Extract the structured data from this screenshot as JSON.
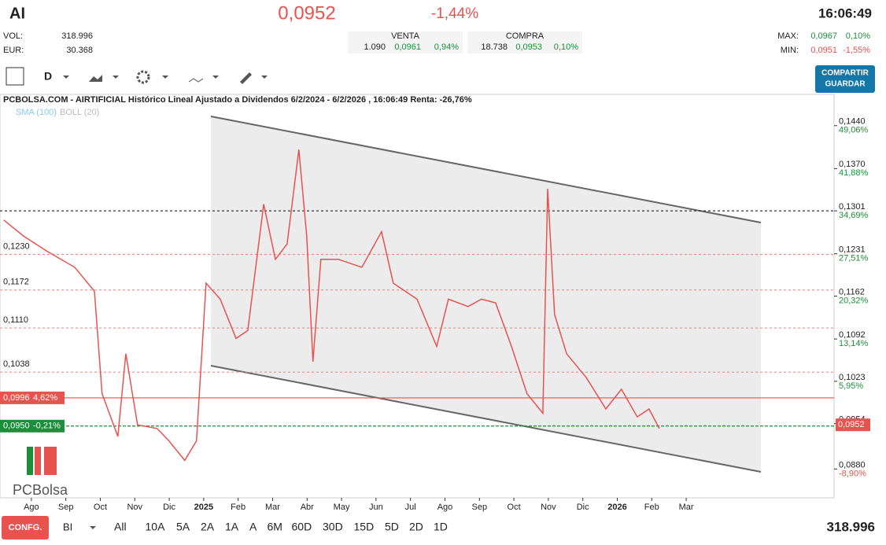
{
  "header": {
    "symbol": "AI",
    "price": "0,0952",
    "change": "-1,44%",
    "time": "16:06:49",
    "vol_label": "VOL:",
    "vol": "318.996",
    "eur_label": "EUR:",
    "eur": "30.368",
    "venta": {
      "title": "VENTA",
      "qty": "1.090",
      "price": "0,0961",
      "pct": "0,94%"
    },
    "compra": {
      "title": "COMPRA",
      "qty": "18.738",
      "price": "0,0953",
      "pct": "0,10%"
    },
    "max": {
      "label": "MAX:",
      "price": "0,0967",
      "pct": "0,10%"
    },
    "min": {
      "label": "MIN:",
      "price": "0,0951",
      "pct": "-1,55%"
    }
  },
  "toolbar": {
    "period": "D",
    "button_line1": "COMPARTIR",
    "button_line2": "GUARDAR"
  },
  "footer": {
    "config": "CONFG.",
    "mode": "BI",
    "ranges": [
      "All",
      "10A",
      "5A",
      "2A",
      "1A",
      "A",
      "6M",
      "60D",
      "30D",
      "15D",
      "5D",
      "2D",
      "1D"
    ],
    "volume": "318.996"
  },
  "logo": "PCBolsa",
  "chart_data": {
    "type": "line",
    "title": "PCBOLSA.COM - AIRTIFICIAL Histórico Lineal Ajustado a Dividendos 6/2/2024 - 6/2/2026 , 16:06:49 Renta: -26,76%",
    "indicators": [
      "SMA (100)",
      "BOLL (20)"
    ],
    "xlim": [
      -0.91,
      23.29
    ],
    "xticks": [
      {
        "value": 0,
        "label": "Ago"
      },
      {
        "value": 1,
        "label": "Sep"
      },
      {
        "value": 2,
        "label": "Oct"
      },
      {
        "value": 3,
        "label": "Nov"
      },
      {
        "value": 4,
        "label": "Dic"
      },
      {
        "value": 5,
        "label": "2025"
      },
      {
        "value": 6,
        "label": "Feb"
      },
      {
        "value": 7,
        "label": "Mar"
      },
      {
        "value": 8,
        "label": "Abr"
      },
      {
        "value": 9,
        "label": "May"
      },
      {
        "value": 10,
        "label": "Jun"
      },
      {
        "value": 11,
        "label": "Jul"
      },
      {
        "value": 12,
        "label": "Ago"
      },
      {
        "value": 13,
        "label": "Sep"
      },
      {
        "value": 14,
        "label": "Oct"
      },
      {
        "value": 15,
        "label": "Nov"
      },
      {
        "value": 16,
        "label": "Dic"
      },
      {
        "value": 17,
        "label": "2026"
      },
      {
        "value": 18,
        "label": "Feb"
      },
      {
        "value": 19,
        "label": "Mar"
      }
    ],
    "ylim": [
      0.0833,
      0.1491
    ],
    "yticks": [
      {
        "value": 0.144,
        "label": "0,1440"
      },
      {
        "value": 0.137,
        "label": "0,1370"
      },
      {
        "value": 0.1301,
        "label": "0,1301"
      },
      {
        "value": 0.1231,
        "label": "0,1231"
      },
      {
        "value": 0.1162,
        "label": "0,1162"
      },
      {
        "value": 0.1092,
        "label": "0,1092"
      },
      {
        "value": 0.1023,
        "label": "0,1023"
      },
      {
        "value": 0.0954,
        "label": "0,0954"
      },
      {
        "value": 0.088,
        "label": "0,0880"
      }
    ],
    "ytick_percents": [
      "49,06%",
      "41,88%",
      "34,69%",
      "27,51%",
      "20,32%",
      "13,14%",
      "5,95%",
      null,
      "-8,90%"
    ],
    "levels": [
      {
        "value": 0.1301,
        "color": "#333333"
      },
      {
        "value": 0.123,
        "label": "0,1230",
        "color": "#f08c8c"
      },
      {
        "value": 0.1172,
        "label": "0,1172",
        "color": "#f08c8c"
      },
      {
        "value": 0.111,
        "label": "0,1110",
        "color": "#f08c8c"
      },
      {
        "value": 0.1038,
        "label": "0,1038",
        "color": "#f08c8c"
      },
      {
        "value": 0.0996,
        "label": "0,0996",
        "pct": "4,62%",
        "color": "#e8524f"
      },
      {
        "value": 0.095,
        "label": "0,0950",
        "pct": "-0,21%",
        "color": "#1d8f3a"
      }
    ],
    "last_price": {
      "value": 0.0952,
      "label": "0,0952"
    },
    "series": [
      {
        "name": "AIRTIFICIAL",
        "color": "#e8524f",
        "x": [
          -0.8,
          -0.23,
          0.46,
          1.26,
          1.83,
          2.05,
          2.51,
          2.74,
          3.08,
          3.65,
          3.99,
          4.45,
          4.79,
          5.07,
          5.48,
          5.94,
          6.28,
          6.74,
          7.08,
          7.42,
          7.76,
          7.99,
          8.17,
          8.4,
          8.9,
          9.59,
          10.16,
          10.5,
          11.19,
          11.76,
          12.1,
          12.67,
          13.06,
          13.47,
          13.93,
          14.38,
          14.84,
          14.98,
          15.18,
          15.53,
          16.1,
          16.67,
          17.12,
          17.58,
          17.92,
          18.22
        ],
        "values": [
          0.1286,
          0.126,
          0.1235,
          0.1209,
          0.117,
          0.1003,
          0.0933,
          0.1068,
          0.0952,
          0.0946,
          0.0926,
          0.0894,
          0.0926,
          0.1183,
          0.1157,
          0.1093,
          0.1106,
          0.1312,
          0.1222,
          0.1247,
          0.1401,
          0.126,
          0.1055,
          0.1222,
          0.1222,
          0.1209,
          0.1267,
          0.1183,
          0.1157,
          0.108,
          0.1157,
          0.1145,
          0.1157,
          0.1151,
          0.108,
          0.1003,
          0.0971,
          0.1337,
          0.1132,
          0.1068,
          0.1029,
          0.0978,
          0.101,
          0.0965,
          0.0978,
          0.0946
        ]
      }
    ]
  }
}
